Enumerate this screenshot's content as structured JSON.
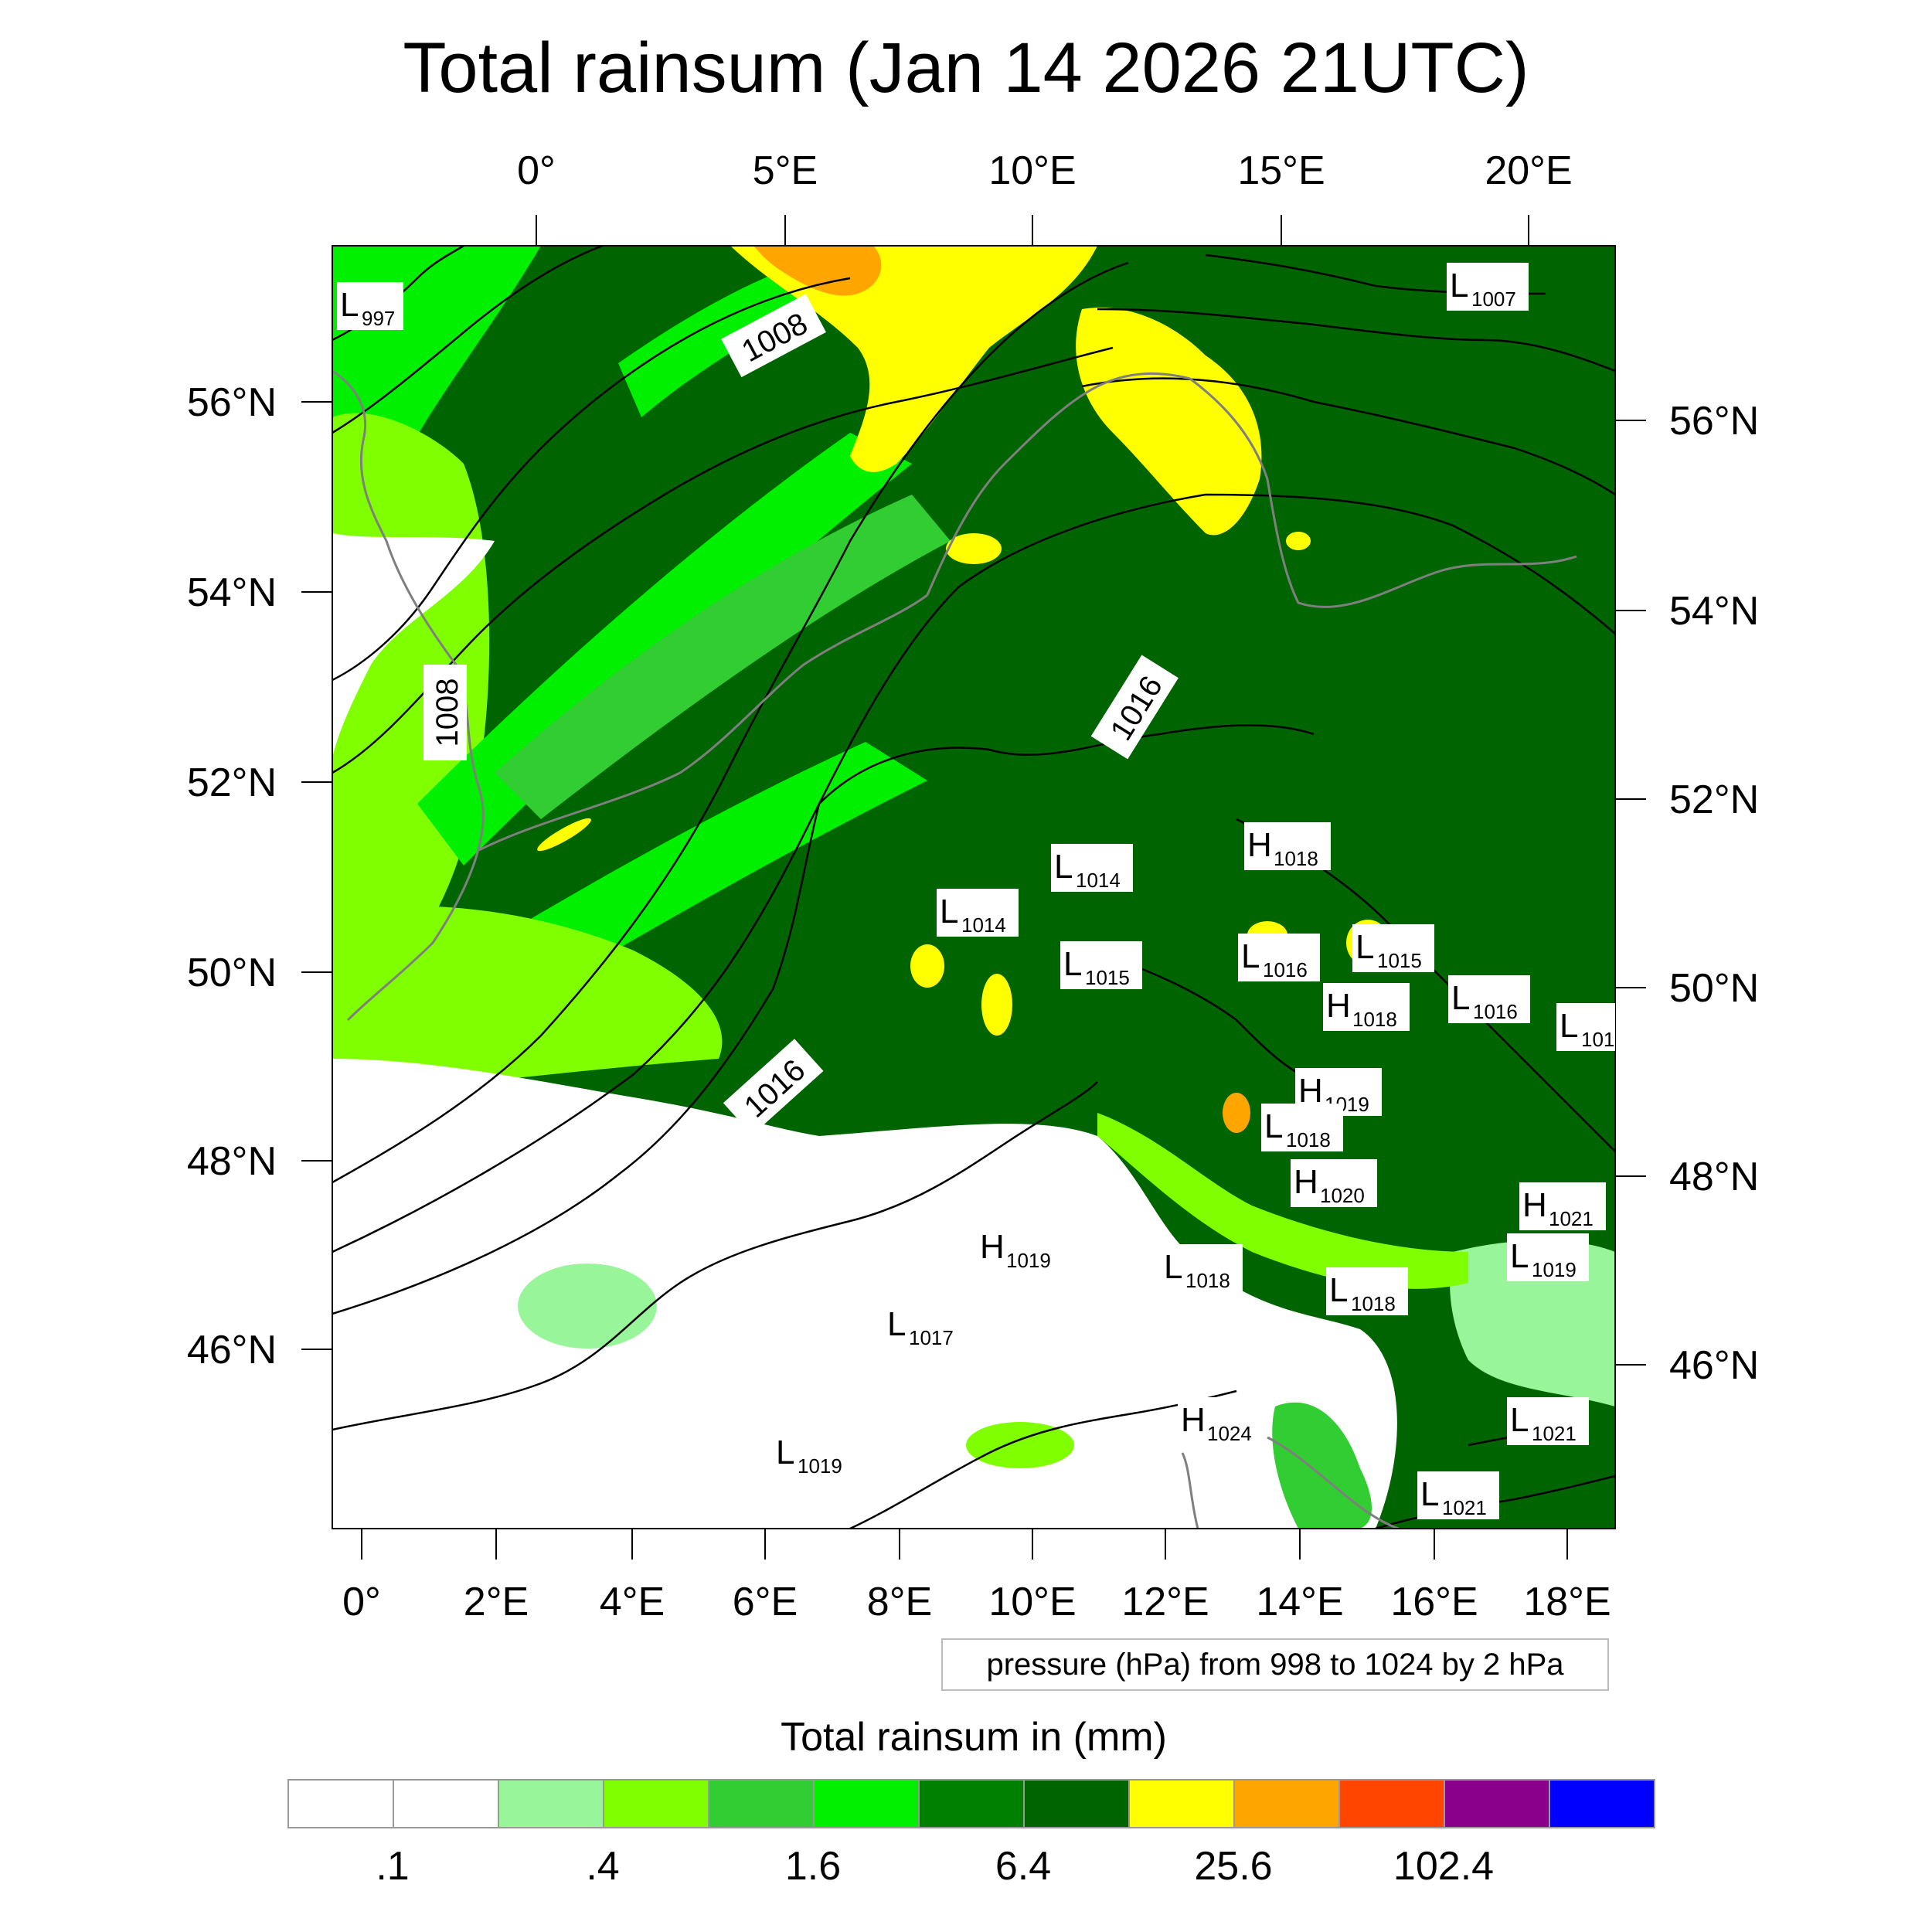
{
  "title": "Total rainsum (Jan 14 2026 21UTC)",
  "top_lon_labels": [
    "0°",
    "5°E",
    "10°E",
    "15°E",
    "20°E"
  ],
  "bottom_lon_labels": [
    "0°",
    "2°E",
    "4°E",
    "6°E",
    "8°E",
    "10°E",
    "12°E",
    "14°E",
    "16°E",
    "18°E"
  ],
  "left_lat_labels": [
    "56°N",
    "54°N",
    "52°N",
    "50°N",
    "48°N",
    "46°N"
  ],
  "right_lat_labels": [
    "56°N",
    "54°N",
    "52°N",
    "50°N",
    "48°N",
    "46°N"
  ],
  "contour_labels": [
    "1008",
    "1008",
    "1016",
    "1016"
  ],
  "pressure_centers": [
    {
      "letter": "L",
      "value": "997"
    },
    {
      "letter": "L",
      "value": "1007"
    },
    {
      "letter": "H",
      "value": "1018"
    },
    {
      "letter": "L",
      "value": "1014"
    },
    {
      "letter": "L",
      "value": "1014"
    },
    {
      "letter": "L",
      "value": "1015"
    },
    {
      "letter": "L",
      "value": "1016"
    },
    {
      "letter": "L",
      "value": "1015"
    },
    {
      "letter": "L",
      "value": "1016"
    },
    {
      "letter": "H",
      "value": "1018"
    },
    {
      "letter": "L",
      "value": "101"
    },
    {
      "letter": "H",
      "value": "1019"
    },
    {
      "letter": "L",
      "value": "1018"
    },
    {
      "letter": "H",
      "value": "1020"
    },
    {
      "letter": "H",
      "value": "1021"
    },
    {
      "letter": "H",
      "value": "1019"
    },
    {
      "letter": "L",
      "value": "1018"
    },
    {
      "letter": "L",
      "value": "1018"
    },
    {
      "letter": "L",
      "value": "1019"
    },
    {
      "letter": "L",
      "value": "1017"
    },
    {
      "letter": "H",
      "value": "1024"
    },
    {
      "letter": "L",
      "value": "1021"
    },
    {
      "letter": "L",
      "value": "1019"
    },
    {
      "letter": "L",
      "value": "1021"
    }
  ],
  "pressure_note": "pressure (hPa) from 998 to 1024 by 2 hPa",
  "colorbar": {
    "title": "Total rainsum in (mm)",
    "colors": [
      "#ffffff",
      "#ffffff",
      "#99f599",
      "#80ff00",
      "#32cd32",
      "#00f000",
      "#008000",
      "#006400",
      "#ffff00",
      "#ffa500",
      "#ff4500",
      "#8b008b",
      "#0000ff"
    ],
    "tick_labels": [
      ".1",
      ".4",
      "1.6",
      "6.4",
      "25.6",
      "102.4"
    ]
  },
  "colors": {
    "lightgreen": "#99f599",
    "lime": "#80ff00",
    "midgreen": "#32cd32",
    "brightgreen": "#00f000",
    "green": "#008000",
    "darkgreen": "#006400",
    "yellow": "#ffff00",
    "orange": "#ffa500",
    "coast": "#7f7f7f",
    "isobar": "#000000"
  }
}
